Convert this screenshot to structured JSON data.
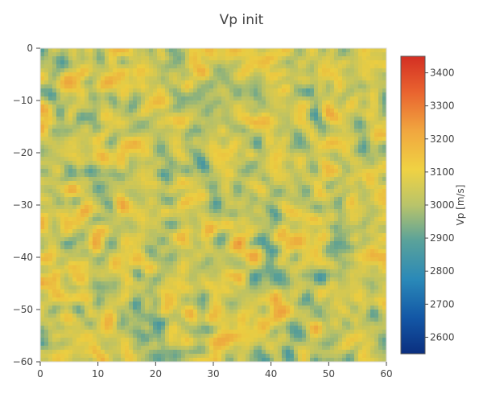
{
  "chart_data": {
    "type": "heatmap",
    "title": "Vp init",
    "xlabel": "",
    "ylabel": "",
    "x_range": [
      0,
      60
    ],
    "y_range": [
      -60,
      0
    ],
    "x_ticks": [
      0,
      10,
      20,
      30,
      40,
      50,
      60
    ],
    "y_ticks": [
      0,
      -10,
      -20,
      -30,
      -40,
      -50,
      -60
    ],
    "x_tick_labels": [
      "0",
      "10",
      "20",
      "30",
      "40",
      "50",
      "60"
    ],
    "y_tick_labels": [
      "0",
      "−10",
      "−20",
      "−30",
      "−40",
      "−50",
      "−60"
    ],
    "colorbar": {
      "title": "Vp [m/s]",
      "range": [
        2550,
        3450
      ],
      "ticks": [
        2600,
        2700,
        2800,
        2900,
        3000,
        3100,
        3200,
        3300,
        3400
      ],
      "tick_labels": [
        "2600",
        "2700",
        "2800",
        "2900",
        "3000",
        "3100",
        "3200",
        "3300",
        "3400"
      ],
      "colorscale": [
        [
          0.0,
          "#0b2f7f"
        ],
        [
          0.12,
          "#1357a6"
        ],
        [
          0.25,
          "#2a89b8"
        ],
        [
          0.38,
          "#5aa29a"
        ],
        [
          0.5,
          "#b9c46a"
        ],
        [
          0.62,
          "#f0d243"
        ],
        [
          0.75,
          "#f1a63f"
        ],
        [
          0.88,
          "#e9632f"
        ],
        [
          1.0,
          "#d32f23"
        ]
      ]
    },
    "grid": false,
    "values_summary": {
      "mean": 3050,
      "spread": 180
    }
  }
}
